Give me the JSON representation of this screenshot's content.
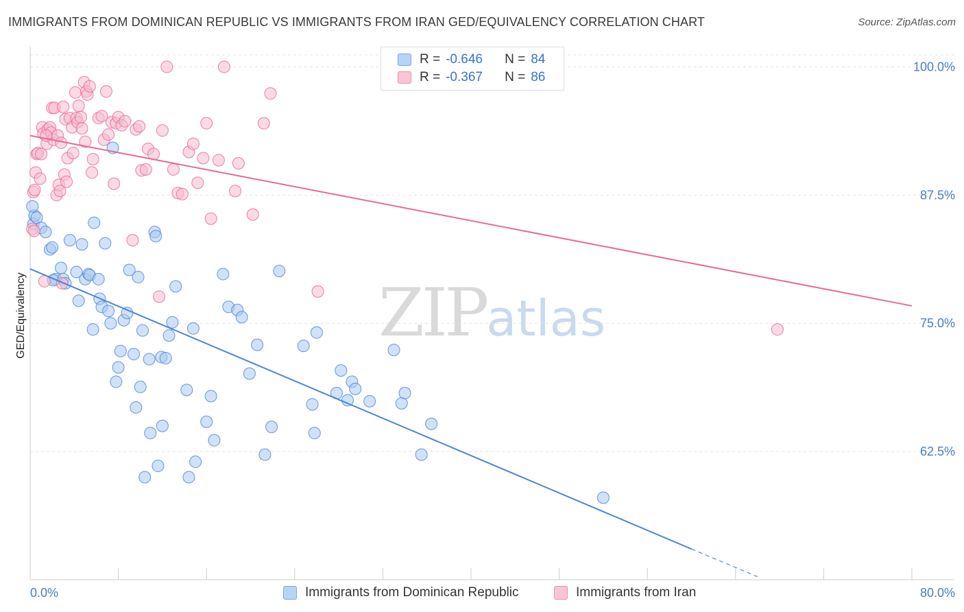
{
  "title": "IMMIGRANTS FROM DOMINICAN REPUBLIC VS IMMIGRANTS FROM IRAN GED/EQUIVALENCY CORRELATION CHART",
  "source": "Source: ZipAtlas.com",
  "watermark": {
    "zip": "ZIP",
    "atlas": "atlas"
  },
  "legend": {
    "series": [
      {
        "r_label": "R =",
        "r_value": "-0.646",
        "n_label": "N =",
        "n_value": "84",
        "color": "#7aa8e8",
        "fill": "#b8d3f5"
      },
      {
        "r_label": "R =",
        "r_value": "-0.367",
        "n_label": "N =",
        "n_value": "86",
        "color": "#f08cab",
        "fill": "#f9c5d6"
      }
    ]
  },
  "bottom_legend": [
    "Immigrants from Dominican Republic",
    "Immigrants from Iran"
  ],
  "chart_data": {
    "type": "scatter",
    "title": "IMMIGRANTS FROM DOMINICAN REPUBLIC VS IMMIGRANTS FROM IRAN GED/EQUIVALENCY CORRELATION CHART",
    "xlabel": "",
    "ylabel": "GED/Equivalency",
    "xlim": [
      0,
      80
    ],
    "ylim": [
      50,
      101.5
    ],
    "x_tick_labels": [
      "0.0%",
      "80.0%"
    ],
    "y_ticks": [
      62.5,
      75.0,
      87.5,
      100.0
    ],
    "y_tick_labels": [
      "62.5%",
      "75.0%",
      "87.5%",
      "100.0%"
    ],
    "grid": true,
    "legend_position": "top-center",
    "series": [
      {
        "name": "Immigrants from Dominican Republic",
        "color": "#4a86d8",
        "fill": "#a9c9f2",
        "trend": {
          "x0": 0,
          "y0": 80.3,
          "x1": 60.0,
          "y1": 53.0,
          "dash_to_x": 66.0,
          "dash_to_y": 50.3
        },
        "points": [
          [
            0.3,
            84.7
          ],
          [
            0.4,
            85.5
          ],
          [
            0.6,
            85.3
          ],
          [
            1.0,
            84.3
          ],
          [
            1.4,
            83.9
          ],
          [
            1.8,
            82.2
          ],
          [
            2.0,
            82.4
          ],
          [
            2.3,
            79.3
          ],
          [
            2.8,
            80.4
          ],
          [
            3.0,
            79.3
          ],
          [
            3.2,
            78.9
          ],
          [
            3.6,
            83.1
          ],
          [
            4.2,
            80.0
          ],
          [
            4.4,
            77.2
          ],
          [
            4.7,
            82.7
          ],
          [
            5.0,
            79.3
          ],
          [
            5.3,
            79.8
          ],
          [
            5.4,
            79.7
          ],
          [
            5.7,
            74.4
          ],
          [
            5.8,
            84.8
          ],
          [
            6.2,
            79.3
          ],
          [
            6.3,
            77.4
          ],
          [
            6.5,
            76.6
          ],
          [
            6.8,
            82.8
          ],
          [
            7.1,
            76.2
          ],
          [
            7.3,
            75.0
          ],
          [
            7.5,
            92.1
          ],
          [
            7.8,
            69.3
          ],
          [
            8.0,
            70.7
          ],
          [
            8.2,
            72.3
          ],
          [
            8.5,
            75.3
          ],
          [
            8.8,
            76.0
          ],
          [
            9.0,
            80.2
          ],
          [
            9.4,
            72.0
          ],
          [
            9.6,
            66.8
          ],
          [
            9.8,
            79.5
          ],
          [
            10.0,
            68.8
          ],
          [
            10.2,
            74.3
          ],
          [
            10.4,
            60.0
          ],
          [
            10.8,
            71.5
          ],
          [
            10.9,
            64.3
          ],
          [
            11.3,
            83.9
          ],
          [
            11.4,
            83.5
          ],
          [
            11.6,
            61.1
          ],
          [
            11.9,
            71.7
          ],
          [
            12.0,
            65.0
          ],
          [
            12.3,
            71.6
          ],
          [
            12.6,
            73.8
          ],
          [
            12.9,
            75.1
          ],
          [
            13.2,
            78.6
          ],
          [
            14.2,
            68.5
          ],
          [
            14.4,
            60.0
          ],
          [
            14.8,
            74.5
          ],
          [
            15.0,
            61.5
          ],
          [
            16.0,
            65.4
          ],
          [
            16.4,
            67.9
          ],
          [
            16.7,
            63.6
          ],
          [
            17.5,
            79.8
          ],
          [
            18.0,
            76.6
          ],
          [
            18.8,
            76.3
          ],
          [
            19.2,
            75.6
          ],
          [
            19.9,
            70.1
          ],
          [
            20.6,
            72.9
          ],
          [
            21.3,
            62.2
          ],
          [
            21.9,
            64.9
          ],
          [
            22.6,
            80.1
          ],
          [
            24.8,
            72.8
          ],
          [
            25.6,
            67.1
          ],
          [
            25.8,
            64.3
          ],
          [
            26.0,
            74.1
          ],
          [
            27.8,
            68.2
          ],
          [
            28.2,
            70.4
          ],
          [
            28.8,
            67.5
          ],
          [
            29.2,
            69.3
          ],
          [
            29.5,
            68.6
          ],
          [
            30.8,
            67.4
          ],
          [
            33.0,
            72.4
          ],
          [
            33.7,
            67.2
          ],
          [
            34.0,
            68.2
          ],
          [
            35.5,
            62.2
          ],
          [
            36.4,
            65.2
          ],
          [
            52.0,
            58.0
          ],
          [
            0.2,
            86.4
          ],
          [
            2.1,
            79.2
          ]
        ]
      },
      {
        "name": "Immigrants from Iran",
        "color": "#e86a92",
        "fill": "#f7bcd0",
        "trend": {
          "x0": 0,
          "y0": 93.3,
          "x1": 80.0,
          "y1": 76.7
        },
        "points": [
          [
            0.2,
            84.2
          ],
          [
            0.3,
            87.8
          ],
          [
            0.4,
            88.0
          ],
          [
            0.5,
            89.7
          ],
          [
            0.6,
            91.5
          ],
          [
            0.7,
            91.6
          ],
          [
            0.9,
            89.1
          ],
          [
            1.0,
            91.5
          ],
          [
            1.1,
            94.1
          ],
          [
            1.2,
            93.5
          ],
          [
            1.3,
            79.1
          ],
          [
            1.5,
            92.5
          ],
          [
            1.6,
            93.9
          ],
          [
            1.8,
            94.1
          ],
          [
            1.9,
            93.6
          ],
          [
            2.0,
            96.0
          ],
          [
            2.1,
            92.9
          ],
          [
            2.2,
            96.0
          ],
          [
            2.4,
            87.5
          ],
          [
            2.5,
            93.3
          ],
          [
            2.6,
            88.5
          ],
          [
            2.7,
            87.9
          ],
          [
            2.8,
            92.6
          ],
          [
            2.9,
            78.9
          ],
          [
            3.0,
            96.1
          ],
          [
            3.1,
            89.5
          ],
          [
            3.2,
            94.9
          ],
          [
            3.3,
            88.8
          ],
          [
            3.4,
            91.1
          ],
          [
            3.6,
            95.0
          ],
          [
            3.8,
            94.1
          ],
          [
            3.9,
            91.6
          ],
          [
            4.1,
            97.5
          ],
          [
            4.2,
            95.0
          ],
          [
            4.3,
            94.6
          ],
          [
            4.4,
            96.2
          ],
          [
            4.6,
            95.1
          ],
          [
            4.7,
            94.0
          ],
          [
            4.9,
            98.5
          ],
          [
            5.0,
            92.7
          ],
          [
            5.1,
            97.6
          ],
          [
            5.2,
            97.3
          ],
          [
            5.4,
            98.1
          ],
          [
            5.6,
            89.7
          ],
          [
            5.7,
            91.0
          ],
          [
            6.2,
            95.0
          ],
          [
            6.5,
            95.2
          ],
          [
            6.7,
            92.9
          ],
          [
            6.9,
            97.6
          ],
          [
            7.1,
            93.4
          ],
          [
            7.4,
            94.6
          ],
          [
            7.6,
            88.6
          ],
          [
            7.8,
            94.5
          ],
          [
            8.0,
            95.1
          ],
          [
            8.3,
            94.3
          ],
          [
            8.6,
            94.7
          ],
          [
            9.3,
            83.1
          ],
          [
            9.6,
            93.9
          ],
          [
            9.9,
            94.2
          ],
          [
            10.1,
            89.9
          ],
          [
            10.5,
            90.0
          ],
          [
            10.7,
            92.0
          ],
          [
            11.2,
            91.5
          ],
          [
            11.7,
            77.6
          ],
          [
            12.0,
            93.8
          ],
          [
            12.4,
            100.0
          ],
          [
            13.0,
            90.0
          ],
          [
            13.4,
            87.7
          ],
          [
            13.8,
            87.6
          ],
          [
            14.4,
            91.7
          ],
          [
            14.8,
            92.5
          ],
          [
            15.2,
            88.7
          ],
          [
            15.7,
            91.1
          ],
          [
            16.0,
            94.5
          ],
          [
            16.4,
            85.2
          ],
          [
            17.1,
            90.9
          ],
          [
            17.6,
            100.0
          ],
          [
            18.6,
            87.9
          ],
          [
            18.9,
            90.6
          ],
          [
            20.2,
            85.6
          ],
          [
            21.2,
            94.5
          ],
          [
            21.8,
            97.4
          ],
          [
            26.1,
            78.1
          ],
          [
            67.8,
            74.4
          ],
          [
            0.35,
            84.0
          ],
          [
            1.45,
            93.3
          ]
        ]
      }
    ]
  }
}
